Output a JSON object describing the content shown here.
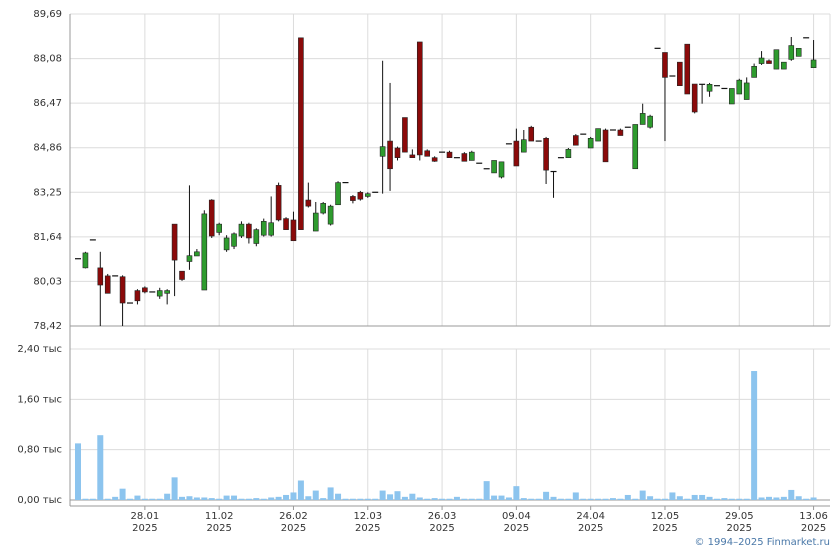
{
  "chart_data": {
    "type": "candlestick",
    "categories": [
      null,
      null,
      null,
      null,
      null,
      null,
      null,
      null,
      null,
      [
        "28.01",
        "2025"
      ],
      null,
      null,
      null,
      null,
      null,
      null,
      null,
      null,
      null,
      [
        "11.02",
        "2025"
      ],
      null,
      null,
      null,
      null,
      null,
      null,
      null,
      null,
      null,
      [
        "26.02",
        "2025"
      ],
      null,
      null,
      null,
      null,
      null,
      null,
      null,
      null,
      null,
      [
        "12.03",
        "2025"
      ],
      null,
      null,
      null,
      null,
      null,
      null,
      null,
      null,
      null,
      [
        "26.03",
        "2025"
      ],
      null,
      null,
      null,
      null,
      null,
      null,
      null,
      null,
      null,
      [
        "09.04",
        "2025"
      ],
      null,
      null,
      null,
      null,
      null,
      null,
      null,
      null,
      null,
      [
        "24.04",
        "2025"
      ],
      null,
      null,
      null,
      null,
      null,
      null,
      null,
      null,
      null,
      [
        "12.05",
        "2025"
      ],
      null,
      null,
      null,
      null,
      null,
      null,
      null,
      null,
      null,
      [
        "29.05",
        "2025"
      ],
      null,
      null,
      null,
      null,
      null,
      null,
      null,
      null,
      null,
      [
        "13.06",
        "2025"
      ]
    ],
    "open": [
      80.85,
      80.52,
      81.53,
      80.52,
      80.23,
      80.23,
      80.2,
      79.25,
      79.7,
      79.8,
      79.65,
      79.5,
      79.6,
      82.1,
      80.4,
      80.75,
      80.95,
      79.72,
      82.97,
      81.8,
      81.17,
      81.3,
      81.67,
      82.1,
      81.4,
      81.7,
      81.7,
      83.5,
      82.3,
      82.25,
      88.83,
      82.97,
      81.85,
      82.5,
      82.1,
      82.8,
      83.6,
      83.1,
      83.25,
      83.1,
      83.25,
      84.55,
      85.1,
      84.85,
      85.95,
      84.6,
      88.68,
      84.75,
      84.5,
      84.7,
      84.7,
      84.5,
      84.65,
      84.4,
      84.3,
      84.1,
      83.95,
      83.8,
      85.0,
      85.1,
      84.7,
      85.6,
      85.1,
      85.2,
      84.0,
      84.5,
      84.5,
      85.3,
      85.35,
      84.85,
      85.1,
      85.5,
      85.5,
      85.5,
      85.6,
      84.1,
      85.7,
      85.6,
      88.45,
      88.3,
      87.45,
      87.95,
      88.6,
      87.16,
      87.15,
      86.9,
      87.1,
      87.0,
      86.44,
      86.8,
      86.6,
      87.4,
      87.9,
      88.0,
      87.7,
      87.7,
      88.05,
      88.16,
      88.83,
      87.75
    ],
    "high": [
      80.85,
      81.1,
      81.53,
      81.1,
      80.3,
      80.23,
      80.25,
      79.25,
      79.75,
      79.85,
      79.65,
      79.8,
      79.75,
      82.1,
      80.4,
      83.5,
      81.2,
      82.6,
      83.0,
      82.15,
      81.7,
      81.8,
      82.2,
      82.15,
      81.95,
      82.3,
      83.1,
      83.6,
      82.35,
      82.55,
      88.83,
      83.6,
      82.9,
      82.9,
      82.8,
      83.65,
      83.6,
      83.15,
      83.3,
      83.25,
      83.25,
      88.0,
      87.2,
      84.9,
      85.95,
      84.8,
      88.68,
      84.8,
      84.55,
      84.7,
      84.75,
      84.5,
      84.7,
      84.75,
      84.3,
      84.1,
      84.4,
      84.35,
      85.0,
      85.55,
      85.5,
      85.65,
      85.1,
      85.25,
      84.0,
      84.5,
      84.85,
      85.35,
      85.35,
      85.25,
      85.55,
      85.55,
      85.5,
      85.55,
      85.6,
      85.7,
      86.45,
      86.05,
      88.45,
      88.3,
      87.45,
      87.95,
      88.6,
      87.16,
      87.15,
      87.2,
      87.1,
      87.0,
      87.0,
      87.35,
      87.4,
      87.9,
      88.35,
      88.05,
      88.4,
      87.95,
      88.86,
      88.45,
      88.83,
      88.75
    ],
    "low": [
      80.85,
      80.5,
      81.53,
      78.42,
      79.6,
      80.23,
      78.42,
      79.25,
      79.2,
      79.6,
      79.65,
      79.4,
      79.2,
      79.5,
      80.05,
      80.45,
      80.95,
      79.72,
      81.6,
      81.7,
      81.1,
      81.2,
      81.6,
      81.4,
      81.3,
      81.65,
      81.65,
      82.2,
      81.9,
      81.5,
      81.9,
      82.7,
      81.85,
      82.45,
      82.05,
      82.8,
      83.6,
      82.85,
      82.95,
      83.05,
      83.25,
      83.2,
      83.3,
      84.4,
      84.7,
      84.5,
      84.4,
      84.55,
      84.35,
      84.7,
      84.5,
      84.5,
      84.37,
      84.4,
      84.3,
      84.1,
      83.95,
      83.75,
      85.0,
      84.2,
      84.7,
      85.1,
      85.1,
      83.55,
      83.05,
      84.5,
      84.5,
      84.95,
      85.35,
      84.85,
      85.1,
      84.35,
      85.5,
      85.3,
      85.6,
      84.1,
      85.7,
      85.55,
      88.45,
      85.1,
      87.45,
      87.1,
      86.8,
      86.1,
      86.45,
      86.7,
      87.1,
      87.0,
      86.44,
      86.8,
      86.6,
      87.4,
      87.85,
      87.9,
      87.7,
      87.7,
      88.0,
      88.16,
      88.83,
      87.75
    ],
    "close": [
      80.85,
      81.06,
      81.53,
      79.9,
      79.6,
      80.23,
      79.25,
      79.25,
      79.33,
      79.65,
      79.65,
      79.7,
      79.7,
      80.8,
      80.1,
      80.96,
      81.1,
      82.47,
      81.67,
      82.1,
      81.6,
      81.75,
      82.1,
      81.6,
      81.9,
      82.2,
      82.15,
      82.25,
      81.9,
      81.5,
      81.9,
      82.75,
      82.5,
      82.85,
      82.75,
      83.6,
      83.6,
      82.95,
      83.0,
      83.2,
      83.25,
      84.9,
      84.1,
      84.5,
      84.7,
      84.5,
      84.6,
      84.55,
      84.37,
      84.7,
      84.5,
      84.5,
      84.37,
      84.7,
      84.3,
      84.1,
      84.4,
      84.35,
      85.0,
      84.2,
      85.15,
      85.1,
      85.1,
      84.05,
      84.0,
      84.5,
      84.8,
      84.95,
      85.35,
      85.2,
      85.55,
      84.35,
      85.5,
      85.3,
      85.6,
      85.7,
      86.1,
      86.0,
      88.45,
      87.4,
      87.45,
      87.1,
      86.8,
      86.15,
      87.15,
      87.15,
      87.1,
      87.0,
      87.0,
      87.3,
      87.2,
      87.8,
      88.1,
      87.9,
      88.4,
      87.95,
      88.55,
      88.45,
      88.83,
      88.03
    ],
    "volume": [
      0.9,
      0.02,
      0.02,
      1.03,
      0.02,
      0.05,
      0.18,
      0.02,
      0.07,
      0.02,
      0.02,
      0.02,
      0.1,
      0.36,
      0.05,
      0.06,
      0.04,
      0.04,
      0.03,
      0.02,
      0.07,
      0.07,
      0.02,
      0.02,
      0.03,
      0.02,
      0.04,
      0.05,
      0.08,
      0.12,
      0.31,
      0.06,
      0.15,
      0.03,
      0.2,
      0.1,
      0.02,
      0.02,
      0.02,
      0.02,
      0.02,
      0.15,
      0.09,
      0.14,
      0.05,
      0.1,
      0.04,
      0.02,
      0.03,
      0.02,
      0.02,
      0.05,
      0.02,
      0.02,
      0.02,
      0.3,
      0.07,
      0.07,
      0.04,
      0.22,
      0.03,
      0.02,
      0.02,
      0.13,
      0.05,
      0.02,
      0.02,
      0.12,
      0.02,
      0.02,
      0.02,
      0.02,
      0.03,
      0.02,
      0.08,
      0.02,
      0.15,
      0.06,
      0.02,
      0.02,
      0.12,
      0.06,
      0.02,
      0.08,
      0.08,
      0.05,
      0.02,
      0.03,
      0.02,
      0.02,
      0.02,
      2.05,
      0.04,
      0.05,
      0.04,
      0.05,
      0.16,
      0.06,
      0.02,
      0.04
    ],
    "up_color": "#2e9b2e",
    "down_color": "#8b0a0a",
    "volume_color": "#8cc4ee",
    "ylim": [
      78.42,
      89.69
    ],
    "yticks": [
      {
        "value": 78.42,
        "label": "78,42"
      },
      {
        "value": 80.03,
        "label": "80,03"
      },
      {
        "value": 81.64,
        "label": "81,64"
      },
      {
        "value": 83.25,
        "label": "83,25"
      },
      {
        "value": 84.86,
        "label": "84,86"
      },
      {
        "value": 86.47,
        "label": "86,47"
      },
      {
        "value": 88.08,
        "label": "88,08"
      },
      {
        "value": 89.69,
        "label": "89,69"
      }
    ],
    "volume_ylim": [
      0,
      2.4
    ],
    "volume_yticks": [
      {
        "value": 0,
        "label": "0,00 тыс"
      },
      {
        "value": 0.8,
        "label": "0,80 тыс"
      },
      {
        "value": 1.6,
        "label": "1,60 тыс"
      },
      {
        "value": 2.4,
        "label": "2,40 тыс"
      }
    ],
    "grid": true,
    "footer": "© 1994–2025 Finmarket.ru"
  }
}
